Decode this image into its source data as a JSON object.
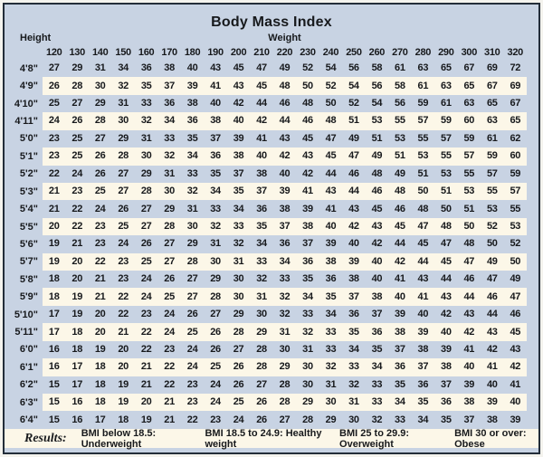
{
  "chart_data": {
    "type": "table",
    "title": "Body Mass Index",
    "row_header_label": "Height",
    "col_header_label": "Weight",
    "weight_columns": [
      "120",
      "130",
      "140",
      "150",
      "160",
      "170",
      "180",
      "190",
      "200",
      "210",
      "220",
      "230",
      "240",
      "250",
      "260",
      "270",
      "280",
      "290",
      "300",
      "310",
      "320"
    ],
    "rows": [
      {
        "height": "4'8\"",
        "values": [
          27,
          29,
          31,
          34,
          36,
          38,
          40,
          43,
          45,
          47,
          49,
          52,
          54,
          56,
          58,
          61,
          63,
          65,
          67,
          69,
          72
        ]
      },
      {
        "height": "4'9\"",
        "values": [
          26,
          28,
          30,
          32,
          35,
          37,
          39,
          41,
          43,
          45,
          48,
          50,
          52,
          54,
          56,
          58,
          61,
          63,
          65,
          67,
          69
        ]
      },
      {
        "height": "4'10\"",
        "values": [
          25,
          27,
          29,
          31,
          33,
          36,
          38,
          40,
          42,
          44,
          46,
          48,
          50,
          52,
          54,
          56,
          59,
          61,
          63,
          65,
          67
        ]
      },
      {
        "height": "4'11\"",
        "values": [
          24,
          26,
          28,
          30,
          32,
          34,
          36,
          38,
          40,
          42,
          44,
          46,
          48,
          51,
          53,
          55,
          57,
          59,
          60,
          63,
          65
        ]
      },
      {
        "height": "5'0\"",
        "values": [
          23,
          25,
          27,
          29,
          31,
          33,
          35,
          37,
          39,
          41,
          43,
          45,
          47,
          49,
          51,
          53,
          55,
          57,
          59,
          61,
          62
        ]
      },
      {
        "height": "5'1\"",
        "values": [
          23,
          25,
          26,
          28,
          30,
          32,
          34,
          36,
          38,
          40,
          42,
          43,
          45,
          47,
          49,
          51,
          53,
          55,
          57,
          59,
          60
        ]
      },
      {
        "height": "5'2\"",
        "values": [
          22,
          24,
          26,
          27,
          29,
          31,
          33,
          35,
          37,
          38,
          40,
          42,
          44,
          46,
          48,
          49,
          51,
          53,
          55,
          57,
          59
        ]
      },
      {
        "height": "5'3\"",
        "values": [
          21,
          23,
          25,
          27,
          28,
          30,
          32,
          34,
          35,
          37,
          39,
          41,
          43,
          44,
          46,
          48,
          50,
          51,
          53,
          55,
          57
        ]
      },
      {
        "height": "5'4\"",
        "values": [
          21,
          22,
          24,
          26,
          27,
          29,
          31,
          33,
          34,
          36,
          38,
          39,
          41,
          43,
          45,
          46,
          48,
          50,
          51,
          53,
          55
        ]
      },
      {
        "height": "5'5\"",
        "values": [
          20,
          22,
          23,
          25,
          27,
          28,
          30,
          32,
          33,
          35,
          37,
          38,
          40,
          42,
          43,
          45,
          47,
          48,
          50,
          52,
          53
        ]
      },
      {
        "height": "5'6\"",
        "values": [
          19,
          21,
          23,
          24,
          26,
          27,
          29,
          31,
          32,
          34,
          36,
          37,
          39,
          40,
          42,
          44,
          45,
          47,
          48,
          50,
          52
        ]
      },
      {
        "height": "5'7\"",
        "values": [
          19,
          20,
          22,
          23,
          25,
          27,
          28,
          30,
          31,
          33,
          34,
          36,
          38,
          39,
          40,
          42,
          44,
          45,
          47,
          49,
          50
        ]
      },
      {
        "height": "5'8\"",
        "values": [
          18,
          20,
          21,
          23,
          24,
          26,
          27,
          29,
          30,
          32,
          33,
          35,
          36,
          38,
          40,
          41,
          43,
          44,
          46,
          47,
          49
        ]
      },
      {
        "height": "5'9\"",
        "values": [
          18,
          19,
          21,
          22,
          24,
          25,
          27,
          28,
          30,
          31,
          32,
          34,
          35,
          37,
          38,
          40,
          41,
          43,
          44,
          46,
          47
        ]
      },
      {
        "height": "5'10\"",
        "values": [
          17,
          19,
          20,
          22,
          23,
          24,
          26,
          27,
          29,
          30,
          32,
          33,
          34,
          36,
          37,
          39,
          40,
          42,
          43,
          44,
          46
        ]
      },
      {
        "height": "5'11\"",
        "values": [
          17,
          18,
          20,
          21,
          22,
          24,
          25,
          26,
          28,
          29,
          31,
          32,
          33,
          35,
          36,
          38,
          39,
          40,
          42,
          43,
          45
        ]
      },
      {
        "height": "6'0\"",
        "values": [
          16,
          18,
          19,
          20,
          22,
          23,
          24,
          26,
          27,
          28,
          30,
          31,
          33,
          34,
          35,
          37,
          38,
          39,
          41,
          42,
          43
        ]
      },
      {
        "height": "6'1\"",
        "values": [
          16,
          17,
          18,
          20,
          21,
          22,
          24,
          25,
          26,
          28,
          29,
          30,
          32,
          33,
          34,
          36,
          37,
          38,
          40,
          41,
          42
        ]
      },
      {
        "height": "6'2\"",
        "values": [
          15,
          17,
          18,
          19,
          21,
          22,
          23,
          24,
          26,
          27,
          28,
          30,
          31,
          32,
          33,
          35,
          36,
          37,
          39,
          40,
          41
        ]
      },
      {
        "height": "6'3\"",
        "values": [
          15,
          16,
          18,
          19,
          20,
          21,
          23,
          24,
          25,
          26,
          28,
          29,
          30,
          31,
          33,
          34,
          35,
          36,
          38,
          39,
          40
        ]
      },
      {
        "height": "6'4\"",
        "values": [
          15,
          16,
          17,
          18,
          19,
          21,
          22,
          23,
          24,
          26,
          27,
          28,
          29,
          30,
          32,
          33,
          34,
          35,
          37,
          38,
          39
        ]
      }
    ],
    "results_label": "Results:",
    "results_legend": [
      "BMI below 18.5: Underweight",
      "BMI 18.5 to 24.9: Healthy weight",
      "BMI 25 to 29.9: Overweight",
      "BMI 30 or over: Obese"
    ],
    "layout": {
      "striped": true,
      "stripe_colors": [
        "#c8d3e3",
        "#fcf7e8"
      ],
      "grid": false
    }
  },
  "colors": {
    "background_blue": "#c8d3e3",
    "stripe_cream": "#fcf7e8",
    "border": "#232d39",
    "text": "#17191c"
  }
}
